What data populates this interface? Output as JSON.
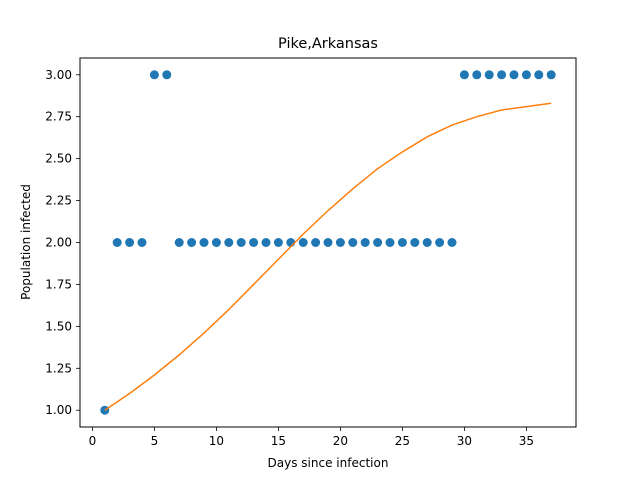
{
  "chart_data": {
    "type": "scatter",
    "title": "Pike,Arkansas",
    "xlabel": "Days since infection",
    "ylabel": "Population infected",
    "xlim": [
      -1,
      39
    ],
    "ylim": [
      0.9,
      3.1
    ],
    "xticks": [
      0,
      5,
      10,
      15,
      20,
      25,
      30,
      35
    ],
    "yticks": [
      1.0,
      1.25,
      1.5,
      1.75,
      2.0,
      2.25,
      2.5,
      2.75,
      3.0
    ],
    "ytick_labels": [
      "1.00",
      "1.25",
      "1.50",
      "1.75",
      "2.00",
      "2.25",
      "2.50",
      "2.75",
      "3.00"
    ],
    "grid": false,
    "series": [
      {
        "kind": "scatter",
        "color": "#1f77b4",
        "x": [
          1,
          2,
          3,
          4,
          5,
          6,
          7,
          8,
          9,
          10,
          11,
          12,
          13,
          14,
          15,
          16,
          17,
          18,
          19,
          20,
          21,
          22,
          23,
          24,
          25,
          26,
          27,
          28,
          29,
          30,
          31,
          32,
          33,
          34,
          35,
          36,
          37
        ],
        "y": [
          1,
          2,
          2,
          2,
          3,
          3,
          2,
          2,
          2,
          2,
          2,
          2,
          2,
          2,
          2,
          2,
          2,
          2,
          2,
          2,
          2,
          2,
          2,
          2,
          2,
          2,
          2,
          2,
          2,
          3,
          3,
          3,
          3,
          3,
          3,
          3,
          3
        ]
      },
      {
        "kind": "line",
        "color": "#ff7f0e",
        "x": [
          1,
          3,
          5,
          7,
          9,
          11,
          13,
          15,
          17,
          19,
          21,
          23,
          25,
          27,
          29,
          31,
          33,
          35,
          37
        ],
        "y": [
          1.0,
          1.1,
          1.21,
          1.33,
          1.46,
          1.6,
          1.75,
          1.9,
          2.05,
          2.19,
          2.32,
          2.44,
          2.54,
          2.63,
          2.7,
          2.75,
          2.79,
          2.81,
          2.83
        ]
      }
    ]
  }
}
